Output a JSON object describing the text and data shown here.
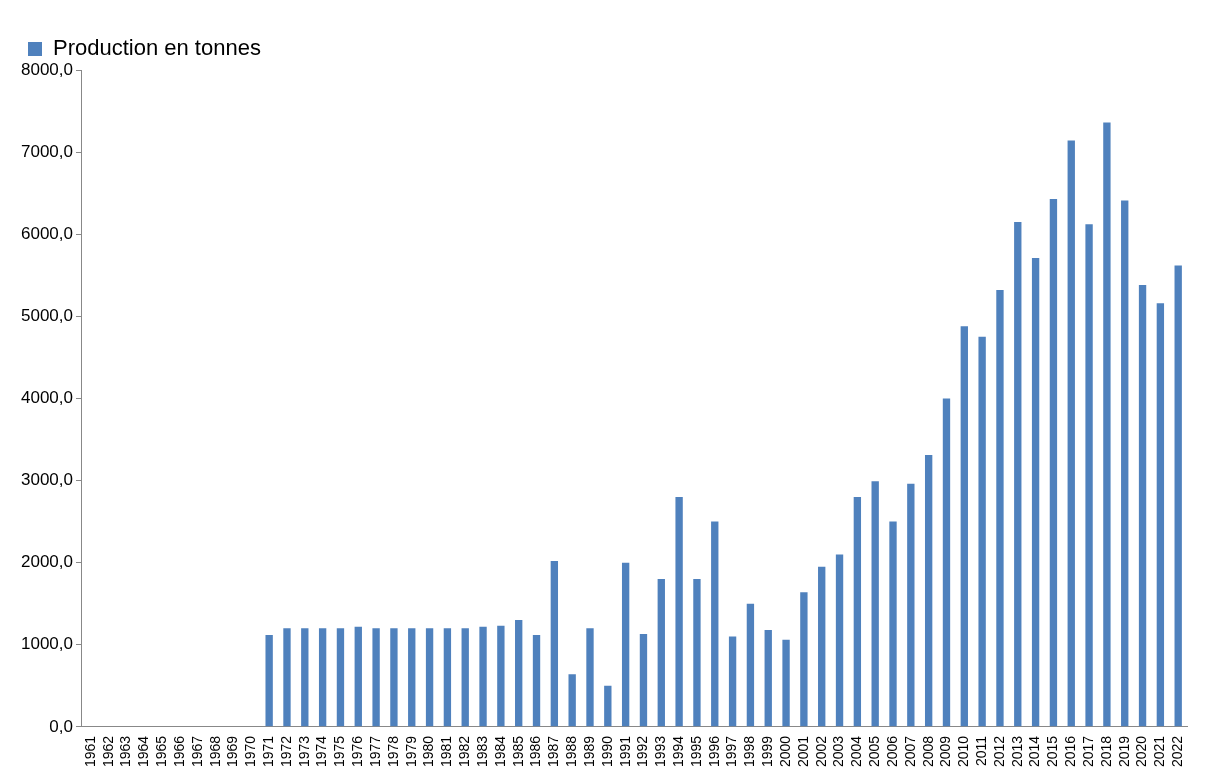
{
  "chart_data": {
    "type": "bar",
    "categories": [
      "1961",
      "1962",
      "1963",
      "1964",
      "1965",
      "1966",
      "1967",
      "1968",
      "1969",
      "1970",
      "1971",
      "1972",
      "1973",
      "1974",
      "1975",
      "1976",
      "1977",
      "1978",
      "1979",
      "1980",
      "1981",
      "1982",
      "1983",
      "1984",
      "1985",
      "1986",
      "1987",
      "1988",
      "1989",
      "1990",
      "1991",
      "1992",
      "1993",
      "1994",
      "1995",
      "1996",
      "1997",
      "1998",
      "1999",
      "2000",
      "2001",
      "2002",
      "2003",
      "2004",
      "2005",
      "2006",
      "2007",
      "2008",
      "2009",
      "2010",
      "2011",
      "2012",
      "2013",
      "2014",
      "2015",
      "2016",
      "2017",
      "2018",
      "2019",
      "2020",
      "2021",
      "2022"
    ],
    "series": [
      {
        "name": "Production en tonnes",
        "color": "#4f81bd",
        "values": [
          0,
          0,
          0,
          0,
          0,
          0,
          0,
          0,
          0,
          0,
          1120,
          1200,
          1200,
          1200,
          1200,
          1220,
          1200,
          1200,
          1200,
          1200,
          1200,
          1200,
          1220,
          1230,
          1300,
          1120,
          2020,
          640,
          1200,
          500,
          2000,
          1130,
          1800,
          2800,
          1800,
          2500,
          1100,
          1500,
          1180,
          1060,
          1640,
          1950,
          2100,
          2800,
          2990,
          2500,
          2960,
          3310,
          4000,
          4880,
          4750,
          5320,
          6150,
          5710,
          6430,
          7140,
          6120,
          7360,
          6410,
          5380,
          5160,
          5620
        ]
      }
    ],
    "ylim": [
      0,
      8000
    ],
    "yticks": [
      {
        "value": 0,
        "label": "0,0"
      },
      {
        "value": 1000,
        "label": "1000,0"
      },
      {
        "value": 2000,
        "label": "2000,0"
      },
      {
        "value": 3000,
        "label": "3000,0"
      },
      {
        "value": 4000,
        "label": "4000,0"
      },
      {
        "value": 5000,
        "label": "5000,0"
      },
      {
        "value": 6000,
        "label": "6000,0"
      },
      {
        "value": 7000,
        "label": "7000,0"
      },
      {
        "value": 8000,
        "label": "8000,0"
      }
    ],
    "grid": false,
    "legend": "top left"
  }
}
